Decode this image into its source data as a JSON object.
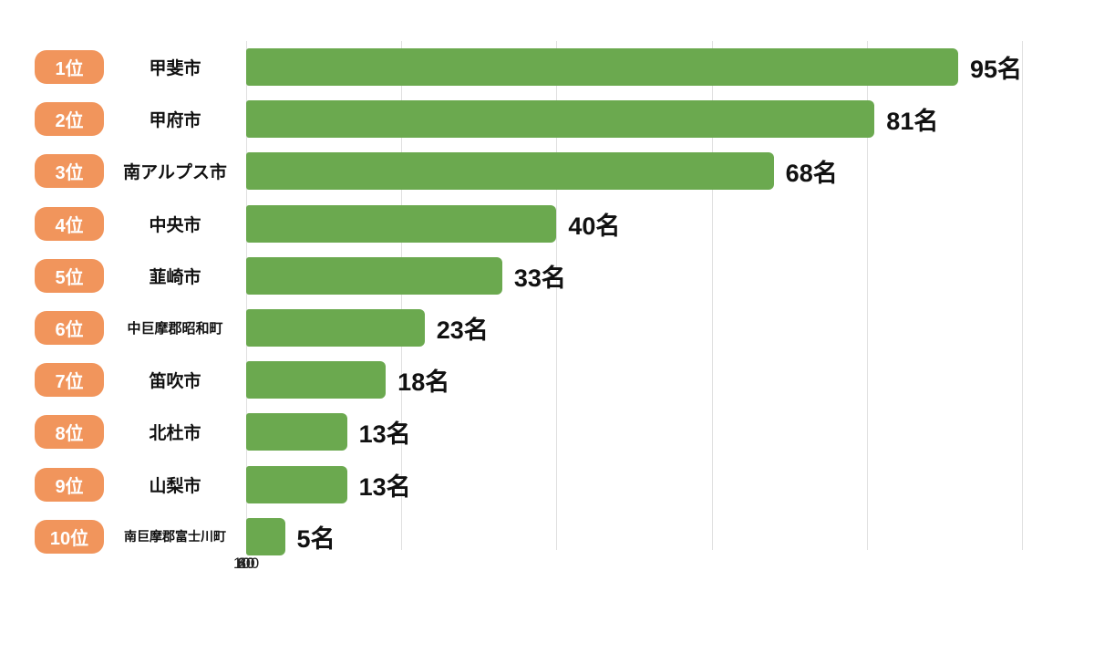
{
  "chart_data": {
    "type": "bar",
    "orientation": "horizontal",
    "title": "",
    "xlabel": "",
    "ylabel": "",
    "xlim": [
      0,
      100
    ],
    "x_ticks": [
      "0",
      "20",
      "40",
      "60",
      "80",
      "100"
    ],
    "grid": true,
    "unit_suffix": "名",
    "rows": [
      {
        "rank": "1位",
        "label": "甲斐市",
        "value": 95,
        "value_label": "95名"
      },
      {
        "rank": "2位",
        "label": "甲府市",
        "value": 81,
        "value_label": "81名"
      },
      {
        "rank": "3位",
        "label": "南アルプス市",
        "value": 68,
        "value_label": "68名"
      },
      {
        "rank": "4位",
        "label": "中央市",
        "value": 40,
        "value_label": "40名"
      },
      {
        "rank": "5位",
        "label": "韮崎市",
        "value": 33,
        "value_label": "33名"
      },
      {
        "rank": "6位",
        "label": "中巨摩郡昭和町",
        "value": 23,
        "value_label": "23名"
      },
      {
        "rank": "7位",
        "label": "笛吹市",
        "value": 18,
        "value_label": "18名"
      },
      {
        "rank": "8位",
        "label": "北杜市",
        "value": 13,
        "value_label": "13名"
      },
      {
        "rank": "9位",
        "label": "山梨市",
        "value": 13,
        "value_label": "13名"
      },
      {
        "rank": "10位",
        "label": "南巨摩郡富士川町",
        "value": 5,
        "value_label": "5名"
      }
    ],
    "colors": {
      "bar": "#6ba94f",
      "rank_badge": "#f1955c",
      "value_text": "#111111",
      "gridline": "#e0e0e0"
    }
  }
}
